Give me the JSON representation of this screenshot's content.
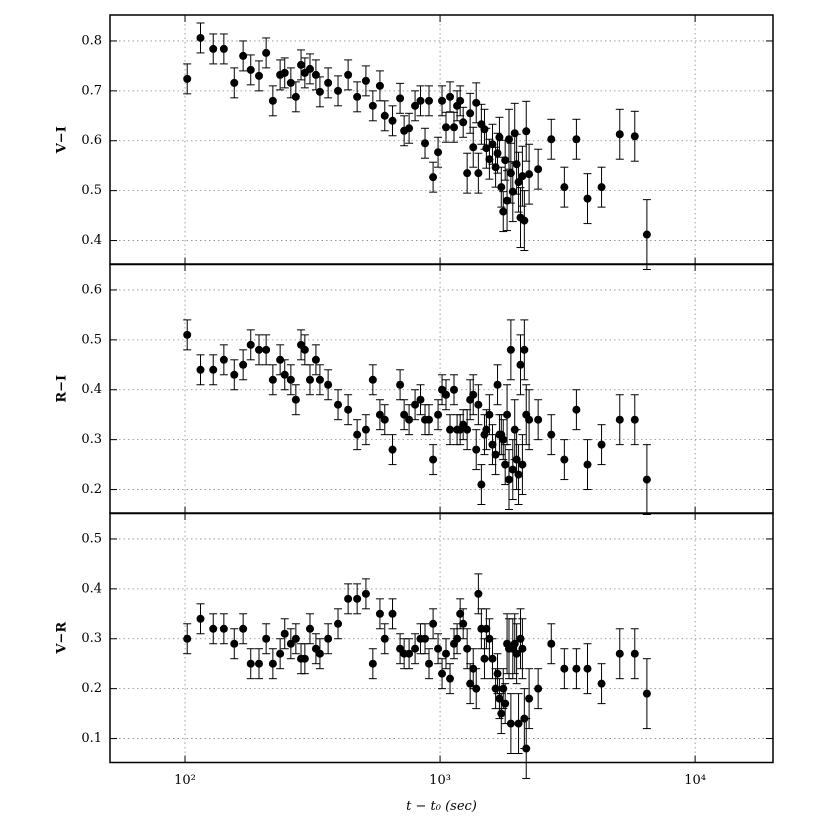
{
  "chart_data": [
    {
      "type": "scatter",
      "ylabel": "V−I",
      "color": "#000000",
      "log_x": true,
      "grid": true,
      "xlim": [
        50.8,
        20200
      ],
      "ylim": [
        0.352,
        0.852
      ],
      "yticks": [
        0.4,
        0.5,
        0.6,
        0.7,
        0.8
      ],
      "x": [
        102,
        115,
        129,
        142,
        156,
        169,
        181,
        195,
        208,
        221,
        236,
        246,
        260,
        272,
        285,
        295,
        309,
        326,
        338,
        364,
        398,
        436,
        473,
        512,
        545,
        581,
        607,
        651,
        697,
        723,
        756,
        798,
        838,
        873,
        905,
        939,
        982,
        1018,
        1055,
        1094,
        1134,
        1166,
        1199,
        1232,
        1277,
        1312,
        1349,
        1386,
        1413,
        1452,
        1493,
        1519,
        1561,
        1605,
        1651,
        1680,
        1709,
        1738,
        1769,
        1800,
        1831,
        1863,
        1895,
        1928,
        1962,
        1996,
        2031,
        2067,
        2103,
        2140,
        2177,
        2234,
        2424,
        2729,
        3071,
        3424,
        3785,
        4297,
        5065,
        5800,
        6470
      ],
      "values": [
        0.724,
        0.806,
        0.784,
        0.784,
        0.716,
        0.77,
        0.742,
        0.73,
        0.776,
        0.68,
        0.732,
        0.736,
        0.716,
        0.688,
        0.752,
        0.736,
        0.744,
        0.732,
        0.698,
        0.716,
        0.7,
        0.732,
        0.688,
        0.72,
        0.67,
        0.71,
        0.65,
        0.64,
        0.685,
        0.62,
        0.625,
        0.67,
        0.68,
        0.595,
        0.68,
        0.527,
        0.577,
        0.68,
        0.627,
        0.688,
        0.627,
        0.67,
        0.68,
        0.637,
        0.535,
        0.655,
        0.587,
        0.676,
        0.535,
        0.633,
        0.623,
        0.585,
        0.563,
        0.593,
        0.547,
        0.575,
        0.607,
        0.507,
        0.458,
        0.561,
        0.48,
        0.603,
        0.535,
        0.498,
        0.615,
        0.553,
        0.517,
        0.446,
        0.529,
        0.44,
        0.619,
        0.533,
        0.543,
        0.603,
        0.507,
        0.603,
        0.484,
        0.507,
        0.613,
        0.609,
        0.412
      ],
      "errors": [
        0.03,
        0.03,
        0.03,
        0.03,
        0.03,
        0.03,
        0.03,
        0.03,
        0.03,
        0.03,
        0.03,
        0.03,
        0.03,
        0.03,
        0.03,
        0.03,
        0.03,
        0.03,
        0.03,
        0.03,
        0.03,
        0.03,
        0.03,
        0.03,
        0.03,
        0.03,
        0.03,
        0.03,
        0.03,
        0.03,
        0.03,
        0.03,
        0.03,
        0.03,
        0.03,
        0.03,
        0.03,
        0.03,
        0.03,
        0.03,
        0.03,
        0.03,
        0.03,
        0.03,
        0.04,
        0.04,
        0.04,
        0.04,
        0.04,
        0.04,
        0.04,
        0.04,
        0.04,
        0.04,
        0.04,
        0.04,
        0.04,
        0.04,
        0.04,
        0.04,
        0.06,
        0.06,
        0.06,
        0.06,
        0.06,
        0.06,
        0.06,
        0.06,
        0.06,
        0.06,
        0.06,
        0.06,
        0.04,
        0.04,
        0.04,
        0.04,
        0.05,
        0.04,
        0.05,
        0.05,
        0.07
      ]
    },
    {
      "type": "scatter",
      "ylabel": "R−I",
      "color": "#000000",
      "log_x": true,
      "grid": true,
      "xlim": [
        50.8,
        20200
      ],
      "ylim": [
        0.152,
        0.652
      ],
      "yticks": [
        0.2,
        0.3,
        0.4,
        0.5,
        0.6
      ],
      "x": [
        102,
        115,
        129,
        142,
        156,
        169,
        181,
        195,
        208,
        221,
        236,
        246,
        260,
        272,
        285,
        295,
        309,
        326,
        338,
        364,
        398,
        436,
        473,
        512,
        545,
        581,
        607,
        651,
        697,
        723,
        756,
        798,
        838,
        873,
        905,
        939,
        982,
        1018,
        1055,
        1094,
        1134,
        1166,
        1199,
        1232,
        1277,
        1312,
        1349,
        1386,
        1413,
        1452,
        1493,
        1519,
        1561,
        1605,
        1651,
        1680,
        1709,
        1738,
        1769,
        1800,
        1831,
        1863,
        1895,
        1928,
        1962,
        1996,
        2031,
        2067,
        2103,
        2140,
        2177,
        2234,
        2424,
        2729,
        3071,
        3424,
        3785,
        4297,
        5065,
        5800,
        6470
      ],
      "values": [
        0.51,
        0.44,
        0.44,
        0.46,
        0.43,
        0.45,
        0.49,
        0.48,
        0.48,
        0.42,
        0.46,
        0.43,
        0.42,
        0.38,
        0.49,
        0.48,
        0.42,
        0.46,
        0.42,
        0.41,
        0.37,
        0.36,
        0.31,
        0.32,
        0.42,
        0.35,
        0.34,
        0.28,
        0.41,
        0.35,
        0.34,
        0.37,
        0.38,
        0.34,
        0.34,
        0.26,
        0.35,
        0.4,
        0.39,
        0.32,
        0.4,
        0.32,
        0.32,
        0.33,
        0.32,
        0.38,
        0.39,
        0.28,
        0.37,
        0.21,
        0.31,
        0.32,
        0.35,
        0.29,
        0.27,
        0.41,
        0.31,
        0.31,
        0.3,
        0.25,
        0.35,
        0.22,
        0.48,
        0.24,
        0.32,
        0.26,
        0.23,
        0.45,
        0.25,
        0.48,
        0.35,
        0.34,
        0.34,
        0.31,
        0.26,
        0.36,
        0.25,
        0.29,
        0.34,
        0.34,
        0.22
      ],
      "errors": [
        0.03,
        0.03,
        0.03,
        0.03,
        0.03,
        0.03,
        0.03,
        0.03,
        0.03,
        0.03,
        0.03,
        0.03,
        0.03,
        0.03,
        0.03,
        0.03,
        0.03,
        0.03,
        0.03,
        0.03,
        0.03,
        0.03,
        0.03,
        0.03,
        0.03,
        0.03,
        0.03,
        0.03,
        0.03,
        0.03,
        0.03,
        0.03,
        0.03,
        0.03,
        0.03,
        0.03,
        0.03,
        0.03,
        0.03,
        0.03,
        0.03,
        0.03,
        0.03,
        0.03,
        0.04,
        0.04,
        0.04,
        0.04,
        0.04,
        0.04,
        0.04,
        0.04,
        0.04,
        0.04,
        0.04,
        0.04,
        0.04,
        0.04,
        0.04,
        0.04,
        0.06,
        0.06,
        0.06,
        0.06,
        0.06,
        0.06,
        0.06,
        0.06,
        0.06,
        0.06,
        0.06,
        0.06,
        0.04,
        0.04,
        0.04,
        0.04,
        0.05,
        0.04,
        0.05,
        0.05,
        0.07
      ]
    },
    {
      "type": "scatter",
      "ylabel": "V−R",
      "xlabel": "t − t₀ (sec)",
      "color": "#000000",
      "log_x": true,
      "grid": true,
      "xlim": [
        50.8,
        20200
      ],
      "ylim": [
        0.052,
        0.552
      ],
      "yticks": [
        0.1,
        0.2,
        0.3,
        0.4,
        0.5
      ],
      "xticks": [
        {
          "value": 100,
          "label": "10²"
        },
        {
          "value": 1000,
          "label": "10³"
        },
        {
          "value": 10000,
          "label": "10⁴"
        }
      ],
      "x": [
        102,
        115,
        129,
        142,
        156,
        169,
        181,
        195,
        208,
        221,
        236,
        246,
        260,
        272,
        285,
        295,
        309,
        326,
        338,
        364,
        398,
        436,
        473,
        512,
        545,
        581,
        607,
        651,
        697,
        723,
        756,
        798,
        838,
        873,
        905,
        939,
        982,
        1018,
        1055,
        1094,
        1134,
        1166,
        1199,
        1232,
        1277,
        1312,
        1349,
        1386,
        1413,
        1452,
        1493,
        1519,
        1561,
        1605,
        1651,
        1680,
        1709,
        1738,
        1769,
        1800,
        1831,
        1863,
        1895,
        1928,
        1962,
        1996,
        2031,
        2067,
        2103,
        2140,
        2177,
        2234,
        2424,
        2729,
        3071,
        3424,
        3785,
        4297,
        5065,
        5800,
        6470
      ],
      "values": [
        0.3,
        0.34,
        0.32,
        0.32,
        0.29,
        0.32,
        0.25,
        0.25,
        0.3,
        0.25,
        0.27,
        0.31,
        0.29,
        0.3,
        0.26,
        0.26,
        0.32,
        0.28,
        0.27,
        0.3,
        0.33,
        0.38,
        0.38,
        0.39,
        0.25,
        0.35,
        0.3,
        0.35,
        0.28,
        0.27,
        0.27,
        0.28,
        0.3,
        0.3,
        0.25,
        0.33,
        0.28,
        0.23,
        0.27,
        0.22,
        0.29,
        0.3,
        0.35,
        0.33,
        0.28,
        0.21,
        0.24,
        0.2,
        0.39,
        0.32,
        0.26,
        0.32,
        0.3,
        0.26,
        0.2,
        0.23,
        0.18,
        0.15,
        0.2,
        0.17,
        0.29,
        0.28,
        0.13,
        0.28,
        0.29,
        0.27,
        0.13,
        0.3,
        0.28,
        0.14,
        0.08,
        0.18,
        0.2,
        0.29,
        0.24,
        0.24,
        0.24,
        0.21,
        0.27,
        0.27,
        0.19
      ],
      "errors": [
        0.03,
        0.03,
        0.03,
        0.03,
        0.03,
        0.03,
        0.03,
        0.03,
        0.03,
        0.03,
        0.03,
        0.03,
        0.03,
        0.03,
        0.03,
        0.03,
        0.03,
        0.03,
        0.03,
        0.03,
        0.03,
        0.03,
        0.03,
        0.03,
        0.03,
        0.03,
        0.03,
        0.03,
        0.03,
        0.03,
        0.03,
        0.03,
        0.03,
        0.03,
        0.03,
        0.03,
        0.03,
        0.03,
        0.03,
        0.03,
        0.03,
        0.03,
        0.03,
        0.03,
        0.04,
        0.04,
        0.04,
        0.04,
        0.04,
        0.04,
        0.04,
        0.04,
        0.04,
        0.04,
        0.04,
        0.04,
        0.04,
        0.04,
        0.04,
        0.04,
        0.06,
        0.06,
        0.06,
        0.06,
        0.06,
        0.06,
        0.06,
        0.06,
        0.06,
        0.06,
        0.06,
        0.06,
        0.04,
        0.04,
        0.04,
        0.04,
        0.05,
        0.04,
        0.05,
        0.05,
        0.07
      ]
    }
  ]
}
